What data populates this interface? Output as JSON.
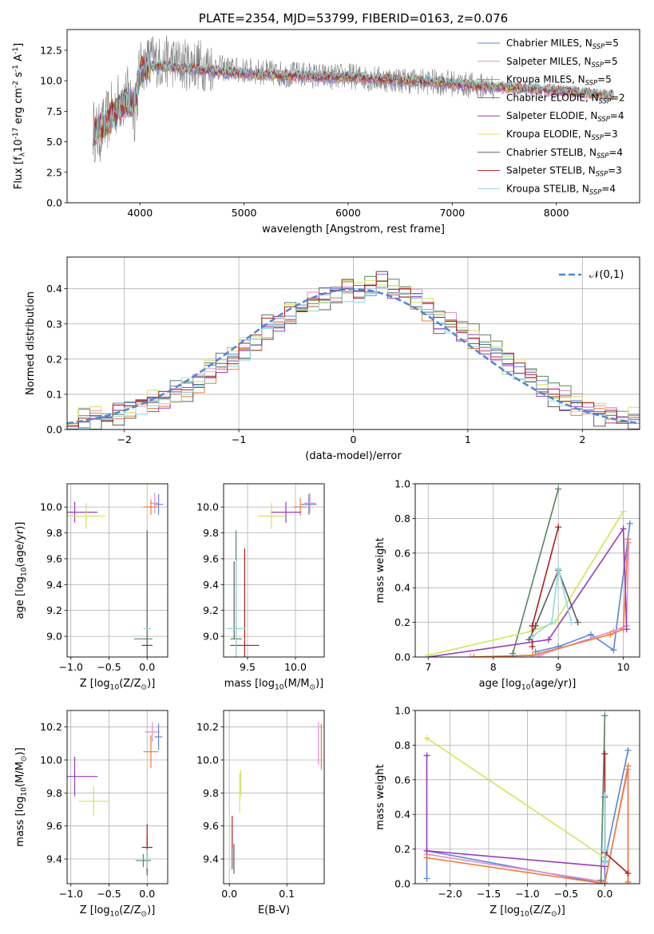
{
  "chart_data": [
    {
      "id": "spectrum",
      "type": "line",
      "title": "PLATE=2354, MJD=53799, FIBERID=0163, z=0.076",
      "xlabel": "wavelength [Angstrom, rest frame]",
      "ylabel": "Flux [f$_\\lambda$10$^{-17}$ erg cm$^{-2}$ s$^{-1}$ A$^{-1}$]",
      "xlim": [
        3300,
        8800
      ],
      "ylim": [
        0,
        14.2
      ],
      "xticks": [
        4000,
        5000,
        6000,
        7000,
        8000
      ],
      "yticks": [
        0.0,
        2.5,
        5.0,
        7.5,
        10.0,
        12.5
      ],
      "grid": false,
      "legend_position": "upper-right",
      "data_color": "#808080",
      "data_x": [
        3550,
        3600,
        3700,
        3800,
        3900,
        3950,
        4000,
        4100,
        4200,
        4300,
        4400,
        4500,
        4600,
        4800,
        5000,
        5200,
        5400,
        5600,
        5800,
        6000,
        6200,
        6400,
        6600,
        6800,
        7000,
        7200,
        7400
      ],
      "data_y": [
        6.0,
        5.5,
        7.0,
        8.3,
        8.8,
        7.5,
        11.0,
        11.8,
        11.5,
        11.6,
        11.3,
        11.4,
        11.3,
        11.0,
        10.8,
        10.7,
        10.5,
        10.5,
        10.3,
        10.4,
        10.2,
        10.1,
        10.0,
        9.9,
        9.8,
        9.6,
        9.5
      ],
      "model_x": [
        3550,
        3650,
        3750,
        3850,
        3950,
        4000,
        4100,
        4200,
        4300,
        4400,
        4500,
        4600,
        4800,
        5000,
        5200,
        5400,
        5600,
        5800,
        6000,
        6200,
        6400,
        6600,
        6800,
        7000,
        7200,
        7400,
        7600,
        7800,
        8000,
        8200,
        8400,
        8550
      ],
      "model_y": [
        5.8,
        6.2,
        7.3,
        8.2,
        8.4,
        10.8,
        11.2,
        11.2,
        11.1,
        11.0,
        11.0,
        10.9,
        10.7,
        10.6,
        10.5,
        10.4,
        10.4,
        10.3,
        10.3,
        10.2,
        10.1,
        10.0,
        9.9,
        9.8,
        9.6,
        9.5,
        9.4,
        9.3,
        9.2,
        9.1,
        8.9,
        8.8
      ],
      "series": [
        {
          "name": "Chabrier MILES, N$_{SSP}$=5",
          "color": "#5a87d8"
        },
        {
          "name": "Salpeter MILES, N$_{SSP}$=5",
          "color": "#e98bc6"
        },
        {
          "name": "Kroupa MILES, N$_{SSP}$=5",
          "color": "#ef7c35"
        },
        {
          "name": "Chabrier ELODIE, N$_{SSP}$=2",
          "color": "#5b8363"
        },
        {
          "name": "Salpeter ELODIE, N$_{SSP}$=4",
          "color": "#9a3bbd"
        },
        {
          "name": "Kroupa ELODIE, N$_{SSP}$=3",
          "color": "#cde65d"
        },
        {
          "name": "Chabrier STELIB, N$_{SSP}$=4",
          "color": "#5d5d5d"
        },
        {
          "name": "Salpeter STELIB, N$_{SSP}$=3",
          "color": "#b01c1c"
        },
        {
          "name": "Kroupa STELIB, N$_{SSP}$=4",
          "color": "#8ed8e0"
        }
      ]
    },
    {
      "id": "residuals",
      "type": "line",
      "xlabel": "(data-model)/error",
      "ylabel": "Normed distribution",
      "xlim": [
        -2.5,
        2.5
      ],
      "ylim": [
        0,
        0.49
      ],
      "xticks": [
        -2,
        -1,
        0,
        1,
        2
      ],
      "yticks": [
        0.0,
        0.1,
        0.2,
        0.3,
        0.4
      ],
      "grid": true,
      "legend_position": "upper-right",
      "legend_label": "$\\mathcal{N}(0,1)$",
      "legend_color": "#4f86d4",
      "hist_bins": [
        -2.5,
        -2.4,
        -2.3,
        -2.2,
        -2.1,
        -2.0,
        -1.9,
        -1.8,
        -1.7,
        -1.6,
        -1.5,
        -1.4,
        -1.3,
        -1.2,
        -1.1,
        -1.0,
        -0.9,
        -0.8,
        -0.7,
        -0.6,
        -0.5,
        -0.4,
        -0.3,
        -0.2,
        -0.1,
        0.0,
        0.1,
        0.2,
        0.3,
        0.4,
        0.5,
        0.6,
        0.7,
        0.8,
        0.9,
        1.0,
        1.1,
        1.2,
        1.3,
        1.4,
        1.5,
        1.6,
        1.7,
        1.8,
        1.9,
        2.0,
        2.1,
        2.2,
        2.3,
        2.4,
        2.5
      ],
      "hist_density": [
        0.025,
        0.035,
        0.04,
        0.04,
        0.05,
        0.06,
        0.075,
        0.075,
        0.085,
        0.1,
        0.12,
        0.135,
        0.16,
        0.19,
        0.2,
        0.23,
        0.25,
        0.29,
        0.3,
        0.32,
        0.33,
        0.36,
        0.37,
        0.38,
        0.395,
        0.39,
        0.4,
        0.42,
        0.4,
        0.39,
        0.37,
        0.34,
        0.31,
        0.3,
        0.28,
        0.265,
        0.24,
        0.22,
        0.19,
        0.165,
        0.14,
        0.115,
        0.1,
        0.085,
        0.07,
        0.06,
        0.05,
        0.04,
        0.035,
        0.03
      ],
      "hist_offsets": [
        0,
        0.012,
        -0.015,
        0.02,
        -0.008,
        0.015,
        -0.02,
        0.009,
        -0.012
      ],
      "normal_curve": {
        "x_min": -2.5,
        "x_max": 2.5,
        "mean": 0,
        "sigma": 1
      }
    },
    {
      "id": "age-vs-Z",
      "type": "scatter",
      "xlabel": "Z [log$_{10}$(Z/Z$_\\odot$)]",
      "ylabel": "age  [log$_{10}$(age/yr)]",
      "xlim": [
        -1.05,
        0.27
      ],
      "ylim": [
        8.84,
        10.18
      ],
      "xticks": [
        -1.0,
        -0.5,
        0.0
      ],
      "yticks": [
        9.0,
        9.2,
        9.4,
        9.6,
        9.8,
        10.0
      ],
      "grid": true,
      "points": [
        {
          "x": 0.15,
          "y": 10.02,
          "xerr": 0.06,
          "yerr": 0.08,
          "color": "#5a87d8"
        },
        {
          "x": 0.1,
          "y": 10.03,
          "xerr": 0.06,
          "yerr": 0.08,
          "color": "#e98bc6"
        },
        {
          "x": 0.05,
          "y": 10.0,
          "xerr": 0.1,
          "yerr": 0.06,
          "color": "#ef7c35"
        },
        {
          "x": -0.05,
          "y": 8.98,
          "xerr": 0.12,
          "yerr": 0.0,
          "color": "#5b8363"
        },
        {
          "x": -0.95,
          "y": 9.96,
          "xerr": 0.3,
          "yerr": 0.08,
          "color": "#9a3bbd"
        },
        {
          "x": -0.8,
          "y": 9.93,
          "xerr": 0.25,
          "yerr": 0.1,
          "color": "#cde65d"
        },
        {
          "x": 0.0,
          "y": 9.28,
          "xerr": 0.0,
          "yerr": 0.54,
          "color": "#5d5d5d"
        },
        {
          "x": 0.0,
          "y": 8.93,
          "xerr": 0.07,
          "yerr": 0.0,
          "color": "#b01c1c"
        },
        {
          "x": 0.0,
          "y": 9.06,
          "xerr": 0.05,
          "yerr": 0.0,
          "color": "#8ed8e0"
        }
      ]
    },
    {
      "id": "age-vs-mass",
      "type": "scatter",
      "xlabel": "mass [log$_{10}$(M/M$_\\odot$)]",
      "ylabel": "",
      "xlim": [
        9.25,
        10.3
      ],
      "ylim": [
        8.84,
        10.18
      ],
      "xticks": [
        9.5,
        10.0
      ],
      "yticks": [
        9.0,
        9.2,
        9.4,
        9.6,
        9.8,
        10.0
      ],
      "grid": true,
      "points": [
        {
          "x": 10.14,
          "y": 10.02,
          "xerr": 0.08,
          "yerr": 0.08,
          "color": "#5a87d8"
        },
        {
          "x": 10.15,
          "y": 10.03,
          "xerr": 0.06,
          "yerr": 0.08,
          "color": "#e98bc6"
        },
        {
          "x": 10.05,
          "y": 10.0,
          "xerr": 0.07,
          "yerr": 0.07,
          "color": "#ef7c35"
        },
        {
          "x": 9.38,
          "y": 8.98,
          "xerr": 0.06,
          "yerr": 0.84,
          "color": "#5b8363"
        },
        {
          "x": 9.9,
          "y": 9.96,
          "xerr": 0.16,
          "yerr": 0.08,
          "color": "#9a3bbd"
        },
        {
          "x": 9.75,
          "y": 9.93,
          "xerr": 0.14,
          "yerr": 0.1,
          "color": "#cde65d"
        },
        {
          "x": 9.36,
          "y": 9.28,
          "xerr": 0.0,
          "yerr": 0.3,
          "color": "#5d5d5d"
        },
        {
          "x": 9.47,
          "y": 8.93,
          "xerr": 0.15,
          "yerr": 0.75,
          "color": "#b01c1c"
        },
        {
          "x": 9.38,
          "y": 9.06,
          "xerr": 0.1,
          "yerr": 0.53,
          "color": "#8ed8e0"
        }
      ]
    },
    {
      "id": "weight-vs-age",
      "type": "line",
      "xlabel": "age  [log$_{10}$(age/yr)]",
      "ylabel": "mass weight",
      "xlim": [
        6.8,
        10.25
      ],
      "ylim": [
        0.0,
        1.0
      ],
      "xticks": [
        7,
        8,
        9,
        10
      ],
      "yticks": [
        0.0,
        0.2,
        0.4,
        0.6,
        0.8,
        1.0
      ],
      "grid": true,
      "series": [
        {
          "color": "#5a87d8",
          "x": [
            8.65,
            9.0,
            9.5,
            9.85,
            10.1
          ],
          "y": [
            0.03,
            0.06,
            0.13,
            0.04,
            0.77
          ]
        },
        {
          "color": "#e98bc6",
          "x": [
            7.65,
            8.7,
            9.85,
            10.05,
            10.08
          ],
          "y": [
            0.0,
            0.01,
            0.15,
            0.18,
            0.66
          ]
        },
        {
          "color": "#ef7c35",
          "x": [
            7.7,
            8.6,
            9.8,
            10.0,
            10.07
          ],
          "y": [
            0.0,
            0.01,
            0.13,
            0.16,
            0.68
          ]
        },
        {
          "color": "#5b8363",
          "x": [
            8.3,
            9.0
          ],
          "y": [
            0.02,
            0.97
          ]
        },
        {
          "color": "#9a3bbd",
          "x": [
            7.0,
            8.85,
            10.0,
            10.05
          ],
          "y": [
            0.0,
            0.1,
            0.74,
            0.16
          ]
        },
        {
          "color": "#cde65d",
          "x": [
            7.0,
            8.6,
            8.95,
            10.0
          ],
          "y": [
            0.01,
            0.15,
            0.2,
            0.84
          ]
        },
        {
          "color": "#5d5d5d",
          "x": [
            8.55,
            8.65,
            9.0,
            9.3
          ],
          "y": [
            0.1,
            0.18,
            0.5,
            0.2
          ]
        },
        {
          "color": "#b01c1c",
          "x": [
            8.6,
            8.6,
            9.0
          ],
          "y": [
            0.06,
            0.18,
            0.75
          ]
        },
        {
          "color": "#8ed8e0",
          "x": [
            8.6,
            8.9,
            9.0,
            9.2
          ],
          "y": [
            0.12,
            0.2,
            0.51,
            0.2
          ]
        }
      ]
    },
    {
      "id": "mass-vs-Z",
      "type": "scatter",
      "xlabel": "Z [log$_{10}$(Z/Z$_\\odot$)]",
      "ylabel": "mass [log$_{10}$(M/M$_\\odot$)]",
      "xlim": [
        -1.05,
        0.27
      ],
      "ylim": [
        9.25,
        10.3
      ],
      "xticks": [
        -1.0,
        -0.5,
        0.0
      ],
      "yticks": [
        9.4,
        9.6,
        9.8,
        10.0,
        10.2
      ],
      "grid": true,
      "points": [
        {
          "x": 0.15,
          "y": 10.14,
          "xerr": 0.05,
          "yerr": 0.08,
          "color": "#5a87d8"
        },
        {
          "x": 0.07,
          "y": 10.17,
          "xerr": 0.1,
          "yerr": 0.06,
          "color": "#e98bc6"
        },
        {
          "x": 0.05,
          "y": 10.05,
          "xerr": 0.1,
          "yerr": 0.1,
          "color": "#ef7c35"
        },
        {
          "x": -0.05,
          "y": 9.39,
          "xerr": 0.1,
          "yerr": 0.04,
          "color": "#5b8363"
        },
        {
          "x": -0.95,
          "y": 9.9,
          "xerr": 0.3,
          "yerr": 0.12,
          "color": "#9a3bbd"
        },
        {
          "x": -0.7,
          "y": 9.75,
          "xerr": 0.2,
          "yerr": 0.09,
          "color": "#cde65d"
        },
        {
          "x": 0.0,
          "y": 9.42,
          "xerr": 0.0,
          "yerr": 0.12,
          "color": "#5d5d5d"
        },
        {
          "x": 0.0,
          "y": 9.47,
          "xerr": 0.07,
          "yerr": 0.14,
          "color": "#b01c1c"
        },
        {
          "x": 0.0,
          "y": 9.4,
          "xerr": 0.05,
          "yerr": 0.06,
          "color": "#8ed8e0"
        }
      ]
    },
    {
      "id": "mass-vs-EBV",
      "type": "scatter",
      "xlabel": "E(B-V)",
      "ylabel": "",
      "xlim": [
        -0.01,
        0.165
      ],
      "ylim": [
        9.25,
        10.3
      ],
      "xticks": [
        0.0,
        0.1
      ],
      "yticks": [
        9.4,
        9.6,
        9.8,
        10.0,
        10.2
      ],
      "grid": true,
      "points": [
        {
          "x": 0.155,
          "y": 10.1,
          "xerr": 0.0,
          "yerr": 0.13,
          "color": "#e98bc6"
        },
        {
          "x": 0.16,
          "y": 10.08,
          "xerr": 0.0,
          "yerr": 0.14,
          "color": "#ef7c35"
        },
        {
          "x": 0.02,
          "y": 9.86,
          "xerr": 0.0,
          "yerr": 0.08,
          "color": "#cde65d"
        },
        {
          "x": 0.018,
          "y": 9.8,
          "xerr": 0.0,
          "yerr": 0.12,
          "color": "#cde65d"
        },
        {
          "x": 0.005,
          "y": 9.5,
          "xerr": 0.0,
          "yerr": 0.16,
          "color": "#b01c1c"
        },
        {
          "x": 0.008,
          "y": 9.4,
          "xerr": 0.0,
          "yerr": 0.09,
          "color": "#5d5d5d"
        },
        {
          "x": 0.004,
          "y": 9.4,
          "xerr": 0.0,
          "yerr": 0.07,
          "color": "#8ed8e0"
        }
      ]
    },
    {
      "id": "weight-vs-Z",
      "type": "line",
      "xlabel": "Z [log$_{10}$(Z/Z$_\\odot$)]",
      "ylabel": "mass weight",
      "xlim": [
        -2.45,
        0.45
      ],
      "ylim": [
        0.0,
        1.0
      ],
      "xticks": [
        -2.0,
        -1.5,
        -1.0,
        -0.5,
        0.0
      ],
      "yticks": [
        0.0,
        0.2,
        0.4,
        0.6,
        0.8,
        1.0
      ],
      "grid": true,
      "series": [
        {
          "color": "#5a87d8",
          "x": [
            -2.3,
            -2.3,
            0.0,
            0.0,
            0.3
          ],
          "y": [
            0.03,
            0.19,
            0.0,
            0.13,
            0.77
          ]
        },
        {
          "color": "#e98bc6",
          "x": [
            -2.3,
            0.0,
            0.3,
            0.3
          ],
          "y": [
            0.17,
            0.01,
            0.66,
            0.0
          ]
        },
        {
          "color": "#ef7c35",
          "x": [
            -2.3,
            0.0,
            0.3,
            0.3
          ],
          "y": [
            0.15,
            0.0,
            0.68,
            0.01
          ]
        },
        {
          "color": "#5b8363",
          "x": [
            -0.05,
            0.0
          ],
          "y": [
            0.02,
            0.97
          ]
        },
        {
          "color": "#9a3bbd",
          "x": [
            -2.3,
            -2.3,
            0.0
          ],
          "y": [
            0.74,
            0.19,
            0.1
          ]
        },
        {
          "color": "#cde65d",
          "x": [
            -2.3,
            0.0,
            0.0
          ],
          "y": [
            0.84,
            0.15,
            0.2
          ]
        },
        {
          "color": "#5d5d5d",
          "x": [
            0.0,
            0.0
          ],
          "y": [
            0.5,
            0.2
          ]
        },
        {
          "color": "#b01c1c",
          "x": [
            0.0,
            0.0,
            0.3
          ],
          "y": [
            0.75,
            0.18,
            0.06
          ]
        },
        {
          "color": "#8ed8e0",
          "x": [
            0.0,
            0.0,
            0.0
          ],
          "y": [
            0.51,
            0.2,
            0.12
          ]
        }
      ]
    }
  ]
}
